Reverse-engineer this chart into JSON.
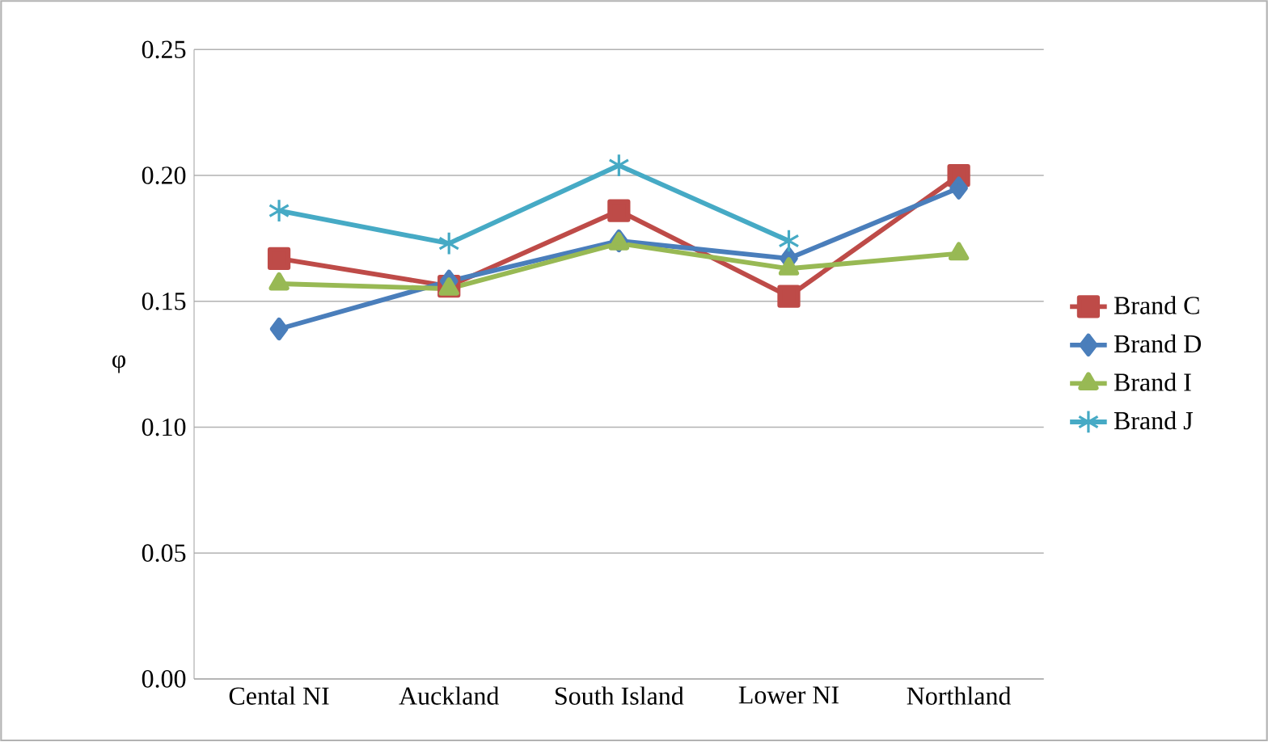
{
  "chart_data": {
    "type": "line",
    "ylabel": "φ",
    "categories": [
      "Cental NI",
      "Auckland",
      "South Island",
      "Lower NI",
      "Northland"
    ],
    "series": [
      {
        "name": "Brand C",
        "color": "#be4b48",
        "marker": "square",
        "values": [
          0.167,
          0.156,
          0.186,
          0.152,
          0.2
        ]
      },
      {
        "name": "Brand D",
        "color": "#4a7ebb",
        "marker": "diamond",
        "values": [
          0.139,
          0.158,
          0.174,
          0.167,
          0.195
        ]
      },
      {
        "name": "Brand I",
        "color": "#98b954",
        "marker": "triangle",
        "values": [
          0.157,
          0.155,
          0.173,
          0.163,
          0.169
        ]
      },
      {
        "name": "Brand J",
        "color": "#46aac5",
        "marker": "cross",
        "values": [
          0.186,
          0.173,
          0.204,
          0.174,
          null
        ]
      }
    ],
    "ylim": [
      0,
      0.25
    ],
    "yticks": [
      {
        "value": 0,
        "label": "0.00"
      },
      {
        "value": 0.05,
        "label": "0.05"
      },
      {
        "value": 0.1,
        "label": "0.10"
      },
      {
        "value": 0.15,
        "label": "0.15"
      },
      {
        "value": 0.2,
        "label": "0.20"
      },
      {
        "value": 0.25,
        "label": "0.25"
      }
    ],
    "grid": "y",
    "legend": "right"
  }
}
